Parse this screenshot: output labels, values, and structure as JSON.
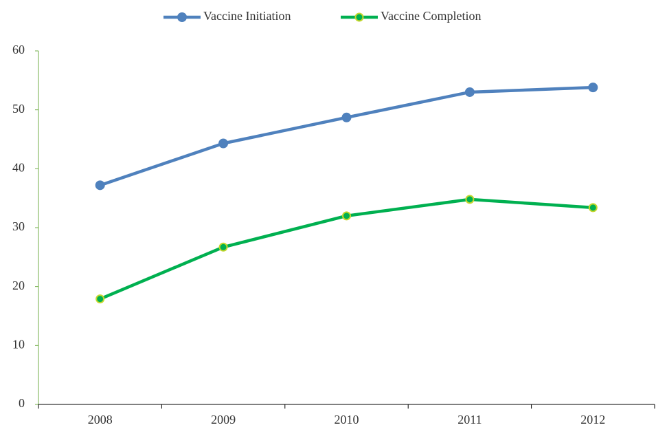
{
  "chart_data": {
    "type": "line",
    "categories": [
      "2008",
      "2009",
      "2010",
      "2011",
      "2012"
    ],
    "series": [
      {
        "name": "Vaccine Initiation",
        "color": "#4f81bd",
        "values": [
          37.2,
          44.3,
          48.7,
          53.0,
          53.8
        ]
      },
      {
        "name": "Vaccine Completion",
        "color": "#00b050",
        "values": [
          17.9,
          26.7,
          32.0,
          34.8,
          33.4
        ]
      }
    ],
    "ylim": [
      0,
      60
    ],
    "yticks": [
      0,
      10,
      20,
      30,
      40,
      50,
      60
    ],
    "grid": false,
    "legend": "top"
  }
}
